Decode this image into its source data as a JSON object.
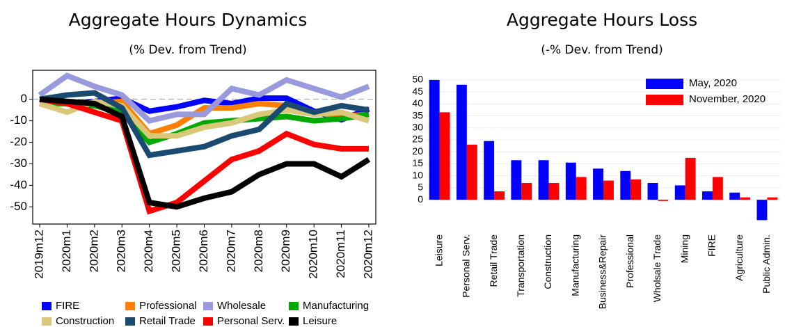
{
  "chart_data": [
    {
      "type": "line",
      "title": "Aggregate Hours Dynamics",
      "subtitle": "(% Dev. from Trend)",
      "categories": [
        "2019m12",
        "2020m1",
        "2020m2",
        "2020m3",
        "2020m4",
        "2020m5",
        "2020m6",
        "2020m7",
        "2020m8",
        "2020m9",
        "2020m10",
        "2020m11",
        "2020m12"
      ],
      "series": [
        {
          "name": "FIRE",
          "color": "#0000ff",
          "values": [
            0,
            -2,
            -1,
            0.5,
            -5.5,
            -3.5,
            -0.5,
            -2,
            0.5,
            0.5,
            -5.5,
            -9.5,
            -4.5
          ]
        },
        {
          "name": "Professional",
          "color": "#ff8000",
          "values": [
            0,
            -1,
            -2,
            -1,
            -16,
            -12,
            -4,
            -4,
            -2,
            -3,
            -6,
            -8,
            -7
          ]
        },
        {
          "name": "Wholesale",
          "color": "#9999dd",
          "values": [
            2,
            11,
            6,
            2,
            -10,
            -7,
            -7,
            5,
            2,
            9,
            5,
            1,
            6
          ]
        },
        {
          "name": "Manufacturing",
          "color": "#00aa00",
          "values": [
            -2,
            -2,
            -3,
            -6,
            -20,
            -16,
            -11,
            -10,
            -9,
            -8,
            -10,
            -9,
            -7
          ]
        },
        {
          "name": "Construction",
          "color": "#d9c77a",
          "values": [
            -2,
            -6,
            -1,
            -3,
            -17,
            -17,
            -13,
            -11,
            -7,
            -5,
            -7,
            -6,
            -10
          ]
        },
        {
          "name": "Retail Trade",
          "color": "#1a4a70",
          "values": [
            0,
            2,
            3,
            -4,
            -26,
            -24,
            -22,
            -17,
            -14,
            -2,
            -6,
            -3,
            -5
          ]
        },
        {
          "name": "Personal Serv.",
          "color": "#ff0000",
          "values": [
            0,
            -2,
            -6,
            -10,
            -52,
            -48,
            -38,
            -28,
            -24,
            -16,
            -21,
            -23,
            -23
          ]
        },
        {
          "name": "Leisure",
          "color": "#000000",
          "values": [
            0,
            -1,
            -2,
            -8,
            -48,
            -50,
            -46,
            -43,
            -35,
            -30,
            -30,
            -36,
            -28
          ]
        }
      ],
      "ylim": [
        -58,
        13.5
      ],
      "yticks": [
        0,
        -10,
        -20,
        -30,
        -40,
        -50
      ],
      "zero_line": true,
      "frame": true
    },
    {
      "type": "bar",
      "title": "Aggregate Hours Loss",
      "subtitle": "(-% Dev. from Trend)",
      "categories": [
        "Leisure",
        "Personal Serv.",
        "Retail Trade",
        "Transportation",
        "Construction",
        "Manufacturing",
        "Business&Repair",
        "Professional",
        "Wholsale Trade",
        "Mining",
        "FIRE",
        "Agriculture",
        "Public Admin."
      ],
      "series": [
        {
          "name": "May, 2020",
          "color": "#0000ff",
          "values": [
            50,
            48,
            24.5,
            16.5,
            16.5,
            15.5,
            13,
            12,
            7,
            6,
            3.5,
            3,
            -8.5
          ]
        },
        {
          "name": "November, 2020",
          "color": "#ff0000",
          "values": [
            36.5,
            23,
            3.5,
            7,
            7,
            9.5,
            8,
            8.5,
            -0.5,
            17.5,
            9.5,
            1,
            1
          ]
        }
      ],
      "ylim": [
        -11,
        52
      ],
      "yticks": [
        0,
        5,
        10,
        15,
        20,
        25,
        30,
        35,
        40,
        45,
        50
      ],
      "grid": true,
      "legend": "top-right"
    }
  ]
}
